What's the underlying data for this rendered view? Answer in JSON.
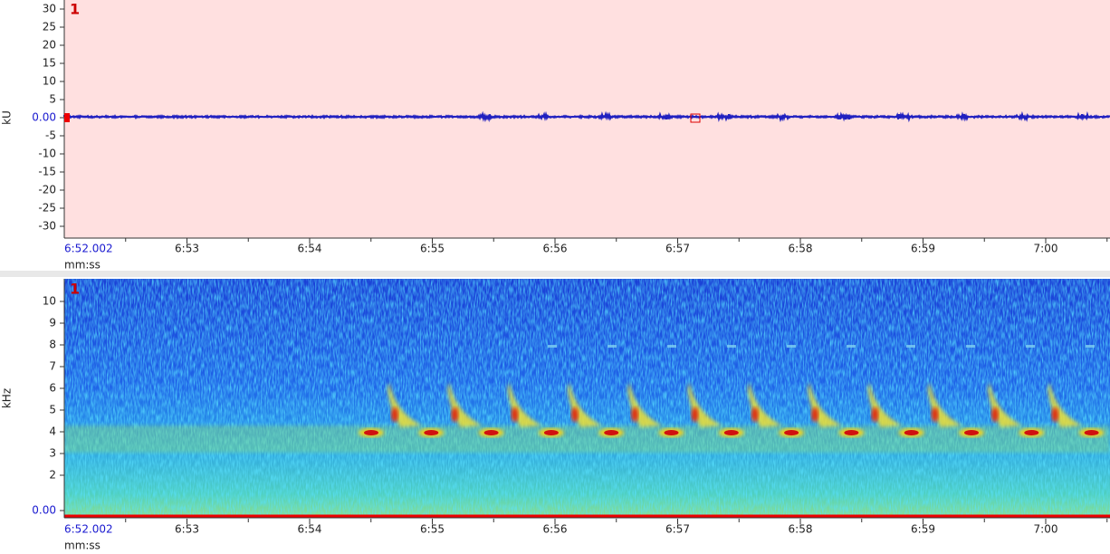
{
  "waveform": {
    "channel": "1",
    "y_axis_label": "kU",
    "y_ticks": [
      "30",
      "25",
      "20",
      "15",
      "10",
      "5",
      "0.00",
      "-5",
      "-10",
      "-15",
      "-20",
      "-25",
      "-30"
    ],
    "x_ticks": [
      "6:52.002",
      "6:53",
      "6:54",
      "6:55",
      "6:56",
      "6:57",
      "6:58",
      "6:59",
      "7:00"
    ],
    "x_axis_label": "mm:ss"
  },
  "spectrogram": {
    "channel": "1",
    "y_axis_label": "kHz",
    "y_ticks": [
      "10",
      "9",
      "8",
      "7",
      "6",
      "5",
      "4",
      "3",
      "2",
      "0.00"
    ],
    "x_ticks": [
      "6:52.002",
      "6:53",
      "6:54",
      "6:55",
      "6:56",
      "6:57",
      "6:58",
      "6:59",
      "7:00"
    ],
    "x_axis_label": "mm:ss"
  }
}
